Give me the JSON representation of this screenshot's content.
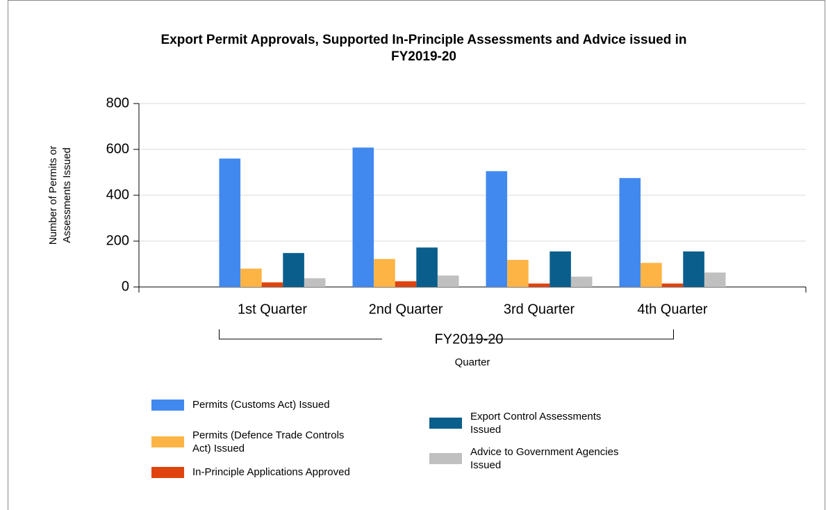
{
  "chart_data": {
    "type": "bar",
    "title": "Export Permit Approvals, Supported In-Principle Assessments and Advice issued in FY2019-20",
    "categories": [
      "1st Quarter",
      "2nd Quarter",
      "3rd Quarter",
      "4th Quarter"
    ],
    "group_label": "FY2019-20",
    "x_label": "Quarter",
    "y_label": "Number of Permits or Assessments Issued",
    "ylim": [
      0,
      800
    ],
    "yticks": [
      0,
      200,
      400,
      600,
      800
    ],
    "grid": true,
    "series": [
      {
        "name": "Permits (Customs Act) Issued",
        "color": "#4189ee",
        "values": [
          560,
          608,
          505,
          475
        ]
      },
      {
        "name": "Permits (Defence Trade Controls Act) Issued",
        "color": "#fdb445",
        "values": [
          80,
          122,
          118,
          105
        ]
      },
      {
        "name": "In-Principle Applications Approved",
        "color": "#e0440e",
        "values": [
          20,
          25,
          15,
          15
        ]
      },
      {
        "name": "Export Control Assessments Issued",
        "color": "#0a5e8c",
        "values": [
          148,
          172,
          155,
          155
        ]
      },
      {
        "name": "Advice to Government Agencies Issued",
        "color": "#c0c0c0",
        "values": [
          38,
          50,
          45,
          63
        ]
      }
    ]
  }
}
